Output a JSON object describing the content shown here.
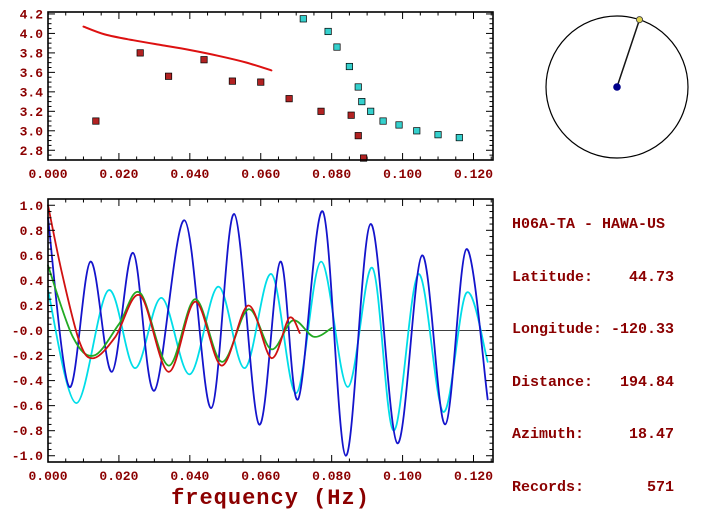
{
  "colors": {
    "text": "#8B0000",
    "frame": "#000000",
    "background": "#ffffff"
  },
  "station": {
    "title": "H06A-TA - HAWA-US",
    "rows": [
      {
        "label": "Latitude:",
        "value": "44.73"
      },
      {
        "label": "Longitude:",
        "value": "-120.33"
      },
      {
        "label": "Distance:",
        "value": "194.84"
      },
      {
        "label": "Azimuth:",
        "value": "18.47"
      },
      {
        "label": "Records:",
        "value": "571"
      }
    ]
  },
  "azimuth_dial": {
    "azimuth_deg": 18.47,
    "circle_color": "#000000",
    "line_color": "#151515",
    "center_dot_color": "#00008b",
    "end_dot_color": "#ded24e"
  },
  "chart_data": [
    {
      "type": "scatter",
      "name": "dispersion-velocity-vs-frequency",
      "title": "",
      "xlabel": "",
      "ylabel": "",
      "xlim": [
        0,
        0.1255
      ],
      "ylim": [
        2.7,
        4.22
      ],
      "grid": false,
      "x_ticks": {
        "major": [
          0,
          0.02,
          0.04,
          0.06,
          0.08,
          0.1,
          0.12
        ],
        "labels": [
          "0.000",
          "0.020",
          "0.040",
          "0.060",
          "0.080",
          "0.100",
          "0.120"
        ],
        "minor_step": 0.005
      },
      "y_ticks": {
        "major": [
          2.8,
          3.0,
          3.2,
          3.4,
          3.6,
          3.8,
          4.0,
          4.2
        ],
        "labels": [
          "2.8",
          "3.0",
          "3.2",
          "3.4",
          "3.6",
          "3.8",
          "4.0",
          "4.2"
        ],
        "minor_step": 0.05
      },
      "series": [
        {
          "name": "reference-curve",
          "type": "line",
          "color": "#dd1111",
          "width": 2,
          "points": [
            [
              0.01,
              4.07
            ],
            [
              0.016,
              3.99
            ],
            [
              0.024,
              3.93
            ],
            [
              0.032,
              3.88
            ],
            [
              0.04,
              3.83
            ],
            [
              0.048,
              3.77
            ],
            [
              0.056,
              3.7
            ],
            [
              0.063,
              3.62
            ]
          ]
        },
        {
          "name": "red-picks",
          "type": "scatter",
          "marker": "square",
          "color": "#b22222",
          "points": [
            [
              0.0135,
              3.1
            ],
            [
              0.026,
              3.8
            ],
            [
              0.034,
              3.56
            ],
            [
              0.044,
              3.73
            ],
            [
              0.052,
              3.51
            ],
            [
              0.06,
              3.5
            ],
            [
              0.068,
              3.33
            ],
            [
              0.077,
              3.2
            ],
            [
              0.0855,
              3.16
            ],
            [
              0.0875,
              2.95
            ],
            [
              0.089,
              2.72
            ]
          ]
        },
        {
          "name": "cyan-picks",
          "type": "scatter",
          "marker": "square",
          "color": "#35d0cd",
          "points": [
            [
              0.072,
              4.15
            ],
            [
              0.079,
              4.02
            ],
            [
              0.0815,
              3.86
            ],
            [
              0.085,
              3.66
            ],
            [
              0.0875,
              3.45
            ],
            [
              0.0885,
              3.3
            ],
            [
              0.091,
              3.2
            ],
            [
              0.0945,
              3.1
            ],
            [
              0.099,
              3.06
            ],
            [
              0.104,
              3.0
            ],
            [
              0.11,
              2.96
            ],
            [
              0.116,
              2.93
            ]
          ]
        }
      ]
    },
    {
      "type": "line",
      "name": "spectral-waveforms",
      "title": "",
      "xlabel": "frequency (Hz)",
      "ylabel": "",
      "zero_line": true,
      "xlim": [
        0,
        0.1255
      ],
      "ylim": [
        -1.05,
        1.05
      ],
      "grid": false,
      "x_ticks": {
        "major": [
          0,
          0.02,
          0.04,
          0.06,
          0.08,
          0.1,
          0.12
        ],
        "labels": [
          "0.000",
          "0.020",
          "0.040",
          "0.060",
          "0.080",
          "0.100",
          "0.120"
        ],
        "minor_step": 0.005
      },
      "y_ticks": {
        "major": [
          -1.0,
          -0.8,
          -0.6,
          -0.4,
          -0.2,
          0.0,
          0.2,
          0.4,
          0.6,
          0.8,
          1.0
        ],
        "labels": [
          "-1.0",
          "-0.8",
          "-0.6",
          "-0.4",
          "-0.2",
          "-0.0",
          "0.2",
          "0.4",
          "0.6",
          "0.8",
          "1.0"
        ],
        "minor_step": 0.05
      },
      "series": [
        {
          "name": "cyan-trace",
          "type": "line",
          "color": "#00dde8",
          "width": 1.8,
          "points": [
            [
              0.0,
              0.32
            ],
            [
              0.008,
              -0.58
            ],
            [
              0.017,
              0.32
            ],
            [
              0.0245,
              -0.3
            ],
            [
              0.032,
              0.26
            ],
            [
              0.04,
              -0.35
            ],
            [
              0.048,
              0.35
            ],
            [
              0.0555,
              -0.3
            ],
            [
              0.063,
              0.45
            ],
            [
              0.07,
              -0.5
            ],
            [
              0.077,
              0.55
            ],
            [
              0.0845,
              -0.45
            ],
            [
              0.0915,
              0.5
            ],
            [
              0.0975,
              -0.8
            ],
            [
              0.1045,
              0.45
            ],
            [
              0.1115,
              -0.65
            ],
            [
              0.118,
              0.3
            ],
            [
              0.124,
              -0.25
            ]
          ]
        },
        {
          "name": "blue-trace",
          "type": "line",
          "color": "#1414cc",
          "width": 1.8,
          "points": [
            [
              0.0,
              0.9
            ],
            [
              0.006,
              -0.45
            ],
            [
              0.012,
              0.55
            ],
            [
              0.018,
              -0.33
            ],
            [
              0.024,
              0.62
            ],
            [
              0.03,
              -0.48
            ],
            [
              0.0385,
              0.88
            ],
            [
              0.046,
              -0.62
            ],
            [
              0.0525,
              0.93
            ],
            [
              0.0595,
              -0.75
            ],
            [
              0.0655,
              0.55
            ],
            [
              0.0705,
              -0.55
            ],
            [
              0.0775,
              0.95
            ],
            [
              0.084,
              -1.0
            ],
            [
              0.091,
              0.85
            ],
            [
              0.0985,
              -0.9
            ],
            [
              0.1055,
              0.6
            ],
            [
              0.112,
              -0.75
            ],
            [
              0.118,
              0.65
            ],
            [
              0.124,
              -0.55
            ]
          ]
        },
        {
          "name": "green-trace",
          "type": "line",
          "color": "#22aa22",
          "width": 1.8,
          "points": [
            [
              0.0,
              0.52
            ],
            [
              0.007,
              -0.05
            ],
            [
              0.013,
              -0.2
            ],
            [
              0.02,
              0.05
            ],
            [
              0.026,
              0.3
            ],
            [
              0.034,
              -0.28
            ],
            [
              0.0415,
              0.25
            ],
            [
              0.049,
              -0.25
            ],
            [
              0.0565,
              0.17
            ],
            [
              0.063,
              -0.15
            ],
            [
              0.069,
              0.08
            ],
            [
              0.075,
              -0.05
            ],
            [
              0.08,
              0.02
            ]
          ]
        },
        {
          "name": "red-trace",
          "type": "line",
          "color": "#d01111",
          "width": 1.8,
          "points": [
            [
              0.0,
              1.0
            ],
            [
              0.004,
              0.45
            ],
            [
              0.009,
              -0.1
            ],
            [
              0.013,
              -0.22
            ],
            [
              0.019,
              -0.05
            ],
            [
              0.026,
              0.28
            ],
            [
              0.034,
              -0.33
            ],
            [
              0.0415,
              0.23
            ],
            [
              0.049,
              -0.28
            ],
            [
              0.0565,
              0.2
            ],
            [
              0.063,
              -0.22
            ],
            [
              0.068,
              0.1
            ],
            [
              0.071,
              -0.02
            ]
          ]
        }
      ]
    }
  ]
}
